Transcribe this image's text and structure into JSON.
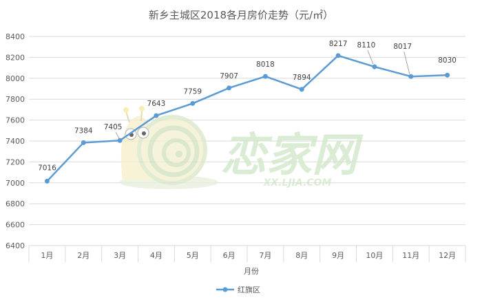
{
  "chart_data": {
    "type": "line",
    "title": "新乡主城区2018各月房价走势（元/㎡）",
    "xlabel": "月份",
    "ylabel": "",
    "categories": [
      "1月",
      "2月",
      "3月",
      "4月",
      "5月",
      "6月",
      "7月",
      "8月",
      "9月",
      "10月",
      "11月",
      "12月"
    ],
    "series": [
      {
        "name": "红旗区",
        "values": [
          7016,
          7384,
          7405,
          7643,
          7759,
          7907,
          8018,
          7894,
          8217,
          8110,
          8017,
          8030
        ]
      }
    ],
    "ylim": [
      6400,
      8400
    ],
    "yticks": [
      6400,
      6600,
      6800,
      7000,
      7200,
      7400,
      7600,
      7800,
      8000,
      8200,
      8400
    ],
    "grid": true,
    "legend": "bottom",
    "line_color": "#5b9bd5"
  },
  "watermark": {
    "logo_text": "恋家网",
    "url_text": "XX.LJIA.COM"
  }
}
